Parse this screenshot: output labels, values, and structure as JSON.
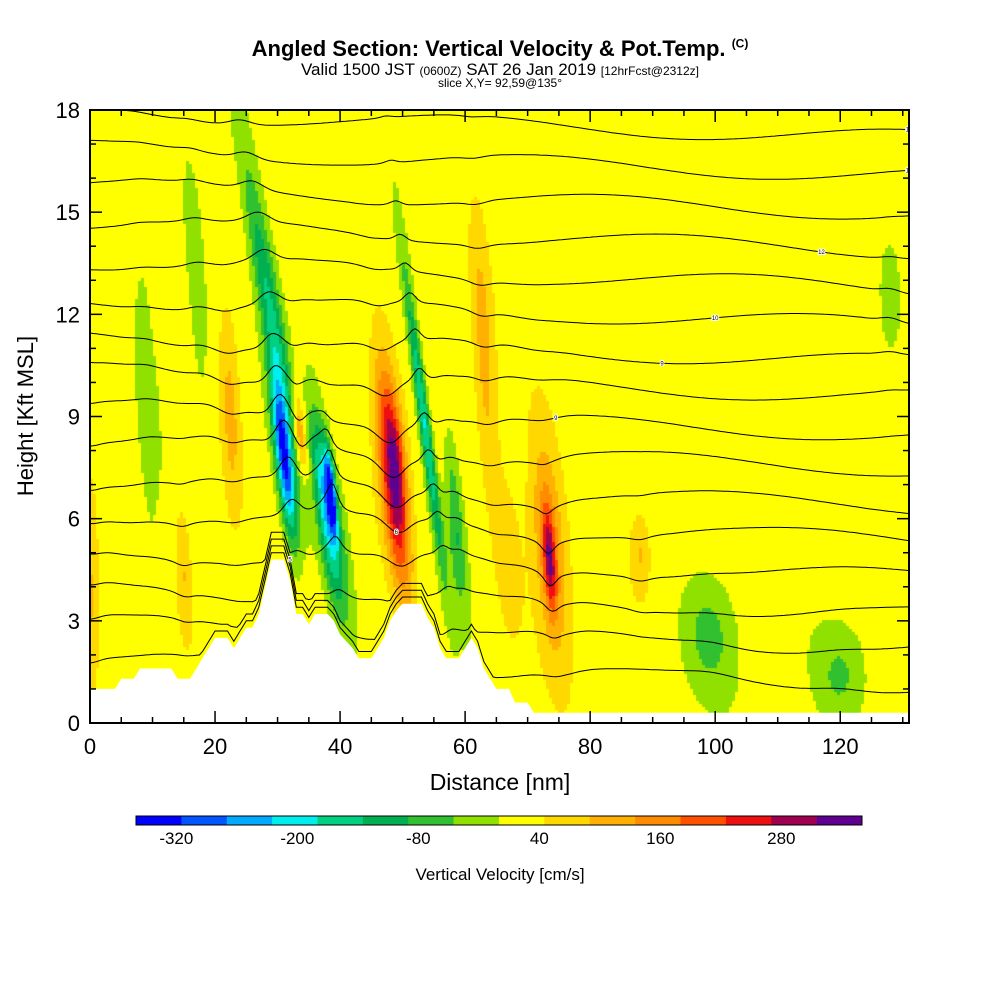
{
  "header": {
    "title_main": "Angled Section: Vertical Velocity & Pot.Temp.",
    "title_mark": "(C)",
    "valid_prefix": "Valid 1500 JST",
    "valid_utc": "(0600Z)",
    "valid_date": "SAT 26 Jan 2019",
    "forecast_info": "[12hrFcst@2312z]",
    "slice_info": "slice X,Y= 92,59@135°"
  },
  "chart_data": {
    "type": "heatmap",
    "xlabel": "Distance [nm]",
    "ylabel": "Height [Kft MSL]",
    "xlim": [
      0,
      131
    ],
    "ylim": [
      0,
      18
    ],
    "x_ticks": [
      0,
      20,
      40,
      60,
      80,
      100,
      120
    ],
    "y_ticks": [
      0,
      3,
      6,
      9,
      12,
      15,
      18
    ],
    "colorbar": {
      "label": "Vertical Velocity [cm/s]",
      "tick_labels": [
        "-320",
        "-200",
        "-80",
        "40",
        "160",
        "280"
      ],
      "tick_values": [
        -320,
        -200,
        -80,
        40,
        160,
        280
      ],
      "range": [
        -360,
        360
      ],
      "colors": [
        "#0000ff",
        "#0055ff",
        "#00aaff",
        "#00eeee",
        "#00d080",
        "#00b050",
        "#30c030",
        "#90e000",
        "#ffff00",
        "#ffd800",
        "#ffb000",
        "#ff8c00",
        "#ff5000",
        "#ee1010",
        "#a00050",
        "#600090"
      ]
    },
    "terrain_profile": [
      [
        0,
        1
      ],
      [
        4,
        1
      ],
      [
        5,
        1.3
      ],
      [
        7,
        1.3
      ],
      [
        8,
        1.6
      ],
      [
        13,
        1.6
      ],
      [
        14,
        1.3
      ],
      [
        16,
        1.3
      ],
      [
        17,
        1.6
      ],
      [
        18,
        1.9
      ],
      [
        19,
        2.2
      ],
      [
        20,
        2.5
      ],
      [
        22,
        2.5
      ],
      [
        23,
        2.2
      ],
      [
        24,
        2.5
      ],
      [
        25,
        2.8
      ],
      [
        26,
        2.8
      ],
      [
        27,
        3.2
      ],
      [
        28,
        4
      ],
      [
        29,
        4.8
      ],
      [
        31,
        4.8
      ],
      [
        32,
        4.2
      ],
      [
        33,
        3.2
      ],
      [
        34,
        3.2
      ],
      [
        35,
        2.9
      ],
      [
        36,
        3.2
      ],
      [
        38,
        3.2
      ],
      [
        39,
        3
      ],
      [
        40,
        2.6
      ],
      [
        41,
        2.4
      ],
      [
        42,
        2.2
      ],
      [
        43,
        1.9
      ],
      [
        45,
        1.9
      ],
      [
        46,
        2.2
      ],
      [
        47,
        2.5
      ],
      [
        48,
        3
      ],
      [
        49,
        3.3
      ],
      [
        50,
        3.5
      ],
      [
        53,
        3.5
      ],
      [
        54,
        3.1
      ],
      [
        55,
        2.8
      ],
      [
        56,
        2.2
      ],
      [
        57,
        1.9
      ],
      [
        59,
        1.9
      ],
      [
        60,
        2.2
      ],
      [
        61,
        2.5
      ],
      [
        62,
        2.2
      ],
      [
        63,
        1.6
      ],
      [
        64,
        1.3
      ],
      [
        65,
        1
      ],
      [
        67,
        1
      ],
      [
        68,
        0.6
      ],
      [
        70,
        0.6
      ],
      [
        71,
        0.3
      ],
      [
        131,
        0.3
      ]
    ],
    "vertical_velocity_features": [
      {
        "x": 29,
        "z": 12.0,
        "dx": 1.8,
        "dz": 4.5,
        "tilt_x_per_kft": 0.9,
        "w": -170
      },
      {
        "x": 31,
        "z": 7.8,
        "dx": 1.3,
        "dz": 2.3,
        "tilt_x_per_kft": 0.6,
        "w": -340
      },
      {
        "x": 33.5,
        "z": 8.5,
        "dx": 0.9,
        "dz": 1.2,
        "tilt_x_per_kft": 0.5,
        "w": 150
      },
      {
        "x": 37.5,
        "z": 6.5,
        "dx": 1.4,
        "dz": 2.6,
        "tilt_x_per_kft": 0.6,
        "w": -230
      },
      {
        "x": 38.5,
        "z": 6.8,
        "dx": 0.7,
        "dz": 1.2,
        "tilt_x_per_kft": 0.5,
        "w": -320
      },
      {
        "x": 40,
        "z": 5.0,
        "dx": 1.6,
        "dz": 2.5,
        "tilt_x_per_kft": 0.5,
        "w": -90
      },
      {
        "x": 48.5,
        "z": 7.2,
        "dx": 2.0,
        "dz": 3.2,
        "tilt_x_per_kft": 0.5,
        "w": 300
      },
      {
        "x": 49,
        "z": 8.0,
        "dx": 1.3,
        "dz": 1.6,
        "tilt_x_per_kft": 0.4,
        "w": 60
      },
      {
        "x": 53.5,
        "z": 8.8,
        "dx": 0.9,
        "dz": 4.2,
        "tilt_x_per_kft": 0.7,
        "w": -210
      },
      {
        "x": 58.5,
        "z": 5.8,
        "dx": 1.3,
        "dz": 2.5,
        "tilt_x_per_kft": 0.4,
        "w": -110
      },
      {
        "x": 63,
        "z": 11.0,
        "dx": 1.6,
        "dz": 4.0,
        "tilt_x_per_kft": 0.3,
        "w": 90
      },
      {
        "x": 73.5,
        "z": 5.2,
        "dx": 2.6,
        "dz": 3.2,
        "tilt_x_per_kft": 0.4,
        "w": 150
      },
      {
        "x": 73.5,
        "z": 4.8,
        "dx": 0.9,
        "dz": 1.4,
        "tilt_x_per_kft": 0.3,
        "w": 180
      },
      {
        "x": 22.5,
        "z": 9.0,
        "dx": 1.6,
        "dz": 3.0,
        "tilt_x_per_kft": 0.2,
        "w": 90
      },
      {
        "x": 15,
        "z": 4.5,
        "dx": 1.2,
        "dz": 2.0,
        "tilt_x_per_kft": 0.2,
        "w": 70
      },
      {
        "x": 88,
        "z": 5.0,
        "dx": 1.5,
        "dz": 1.2,
        "tilt_x_per_kft": 0.1,
        "w": 70
      },
      {
        "x": 99,
        "z": 2.6,
        "dx": 4.0,
        "dz": 1.7,
        "tilt_x_per_kft": 0.2,
        "w": -80
      },
      {
        "x": 120,
        "z": 1.4,
        "dx": 4.0,
        "dz": 1.4,
        "tilt_x_per_kft": 0.0,
        "w": -70
      },
      {
        "x": 17,
        "z": 13.0,
        "dx": 1.5,
        "dz": 3.5,
        "tilt_x_per_kft": 0.3,
        "w": -50
      },
      {
        "x": 9,
        "z": 10.0,
        "dx": 2.0,
        "dz": 5.0,
        "tilt_x_per_kft": 0.2,
        "w": -40
      },
      {
        "x": 128,
        "z": 12.5,
        "dx": 1.5,
        "dz": 1.5,
        "tilt_x_per_kft": 0.0,
        "w": -60
      },
      {
        "x": 67,
        "z": 5.0,
        "dx": 2.5,
        "dz": 3.0,
        "tilt_x_per_kft": 0.2,
        "w": 45
      },
      {
        "x": 0,
        "z": 4.0,
        "dx": 1.5,
        "dz": 3.0,
        "tilt_x_per_kft": 0.0,
        "w": 80
      }
    ],
    "potential_temperature_contours": [
      {
        "z0": 1.5,
        "label": ""
      },
      {
        "z0": 2.6,
        "label": ""
      },
      {
        "z0": 3.6,
        "label": "5"
      },
      {
        "z0": 4.7,
        "label": ""
      },
      {
        "z0": 5.8,
        "label": "6"
      },
      {
        "z0": 6.8,
        "label": ""
      },
      {
        "z0": 7.9,
        "label": ""
      },
      {
        "z0": 8.9,
        "label": "9"
      },
      {
        "z0": 10.0,
        "label": ""
      },
      {
        "z0": 11.0,
        "label": "9"
      },
      {
        "z0": 12.1,
        "label": "10"
      },
      {
        "z0": 13.2,
        "label": ""
      },
      {
        "z0": 14.3,
        "label": "12"
      },
      {
        "z0": 15.4,
        "label": ""
      },
      {
        "z0": 16.5,
        "label": "16"
      },
      {
        "z0": 17.6,
        "label": "18"
      }
    ]
  }
}
